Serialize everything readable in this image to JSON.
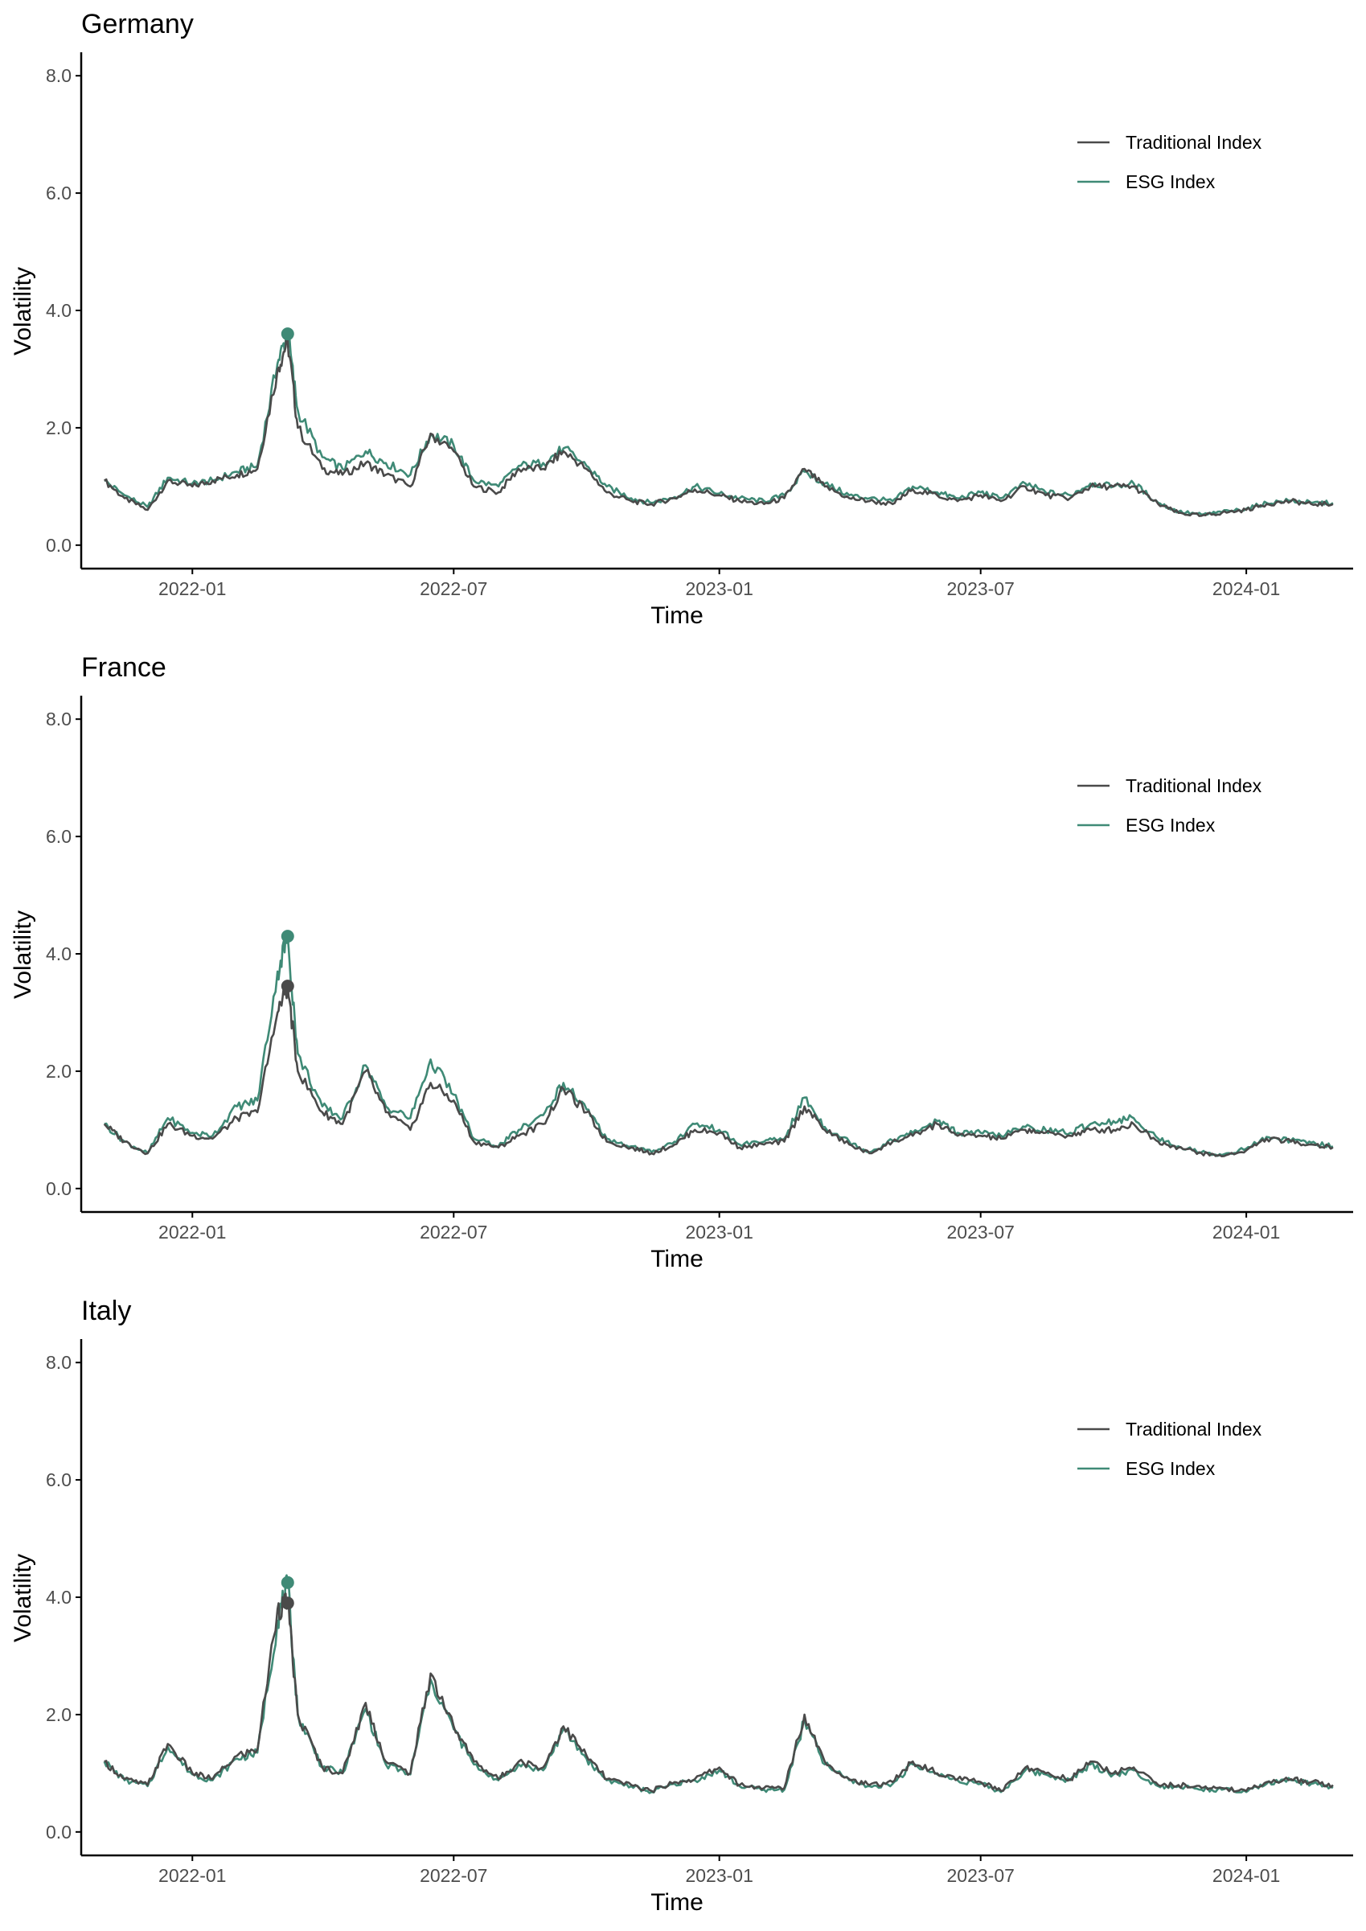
{
  "figure": {
    "x_label": "Time",
    "y_label": "Volatility",
    "legend": [
      {
        "name": "Traditional Index",
        "color": "#4a4a4a"
      },
      {
        "name": "ESG Index",
        "color": "#3f8a76"
      }
    ],
    "x_ticks": [
      "2022-01",
      "2022-07",
      "2023-01",
      "2023-07",
      "2024-01"
    ],
    "y_ticks": [
      "0.0",
      "2.0",
      "4.0",
      "6.0",
      "8.0"
    ]
  },
  "chart_data": [
    {
      "type": "line",
      "title": "Germany",
      "xlabel": "Time",
      "ylabel": "Volatility",
      "ylim": [
        -0.4,
        8.4
      ],
      "xlim": [
        "2021-10-16",
        "2024-03-15"
      ],
      "x_ticks": [
        "2022-01",
        "2022-07",
        "2023-01",
        "2023-07",
        "2024-01"
      ],
      "x": [
        "2021-11-01",
        "2021-11-15",
        "2021-12-01",
        "2021-12-15",
        "2022-01-01",
        "2022-01-15",
        "2022-02-01",
        "2022-02-15",
        "2022-03-01",
        "2022-03-08",
        "2022-03-15",
        "2022-04-01",
        "2022-04-15",
        "2022-05-01",
        "2022-05-15",
        "2022-06-01",
        "2022-06-15",
        "2022-07-01",
        "2022-07-15",
        "2022-08-01",
        "2022-08-15",
        "2022-09-01",
        "2022-09-15",
        "2022-10-01",
        "2022-10-15",
        "2022-11-01",
        "2022-11-15",
        "2022-12-01",
        "2022-12-15",
        "2023-01-01",
        "2023-01-15",
        "2023-02-01",
        "2023-02-15",
        "2023-03-01",
        "2023-03-15",
        "2023-04-01",
        "2023-04-15",
        "2023-05-01",
        "2023-05-15",
        "2023-06-01",
        "2023-06-15",
        "2023-07-01",
        "2023-07-15",
        "2023-08-01",
        "2023-08-15",
        "2023-09-01",
        "2023-09-15",
        "2023-10-01",
        "2023-10-15",
        "2023-11-01",
        "2023-11-15",
        "2023-12-01",
        "2023-12-15",
        "2024-01-01",
        "2024-01-15",
        "2024-02-01",
        "2024-02-15",
        "2024-03-01"
      ],
      "series": [
        {
          "name": "Traditional Index",
          "color": "#4a4a4a",
          "values": [
            1.1,
            0.8,
            0.6,
            1.1,
            1.0,
            1.1,
            1.2,
            1.3,
            3.0,
            3.5,
            2.0,
            1.3,
            1.2,
            1.4,
            1.2,
            1.0,
            1.9,
            1.6,
            1.0,
            0.9,
            1.3,
            1.3,
            1.6,
            1.3,
            0.9,
            0.75,
            0.7,
            0.8,
            0.95,
            0.85,
            0.75,
            0.7,
            0.8,
            1.3,
            1.0,
            0.8,
            0.75,
            0.7,
            0.95,
            0.85,
            0.75,
            0.85,
            0.75,
            1.0,
            0.85,
            0.8,
            1.0,
            1.0,
            1.0,
            0.7,
            0.55,
            0.5,
            0.55,
            0.6,
            0.7,
            0.75,
            0.7,
            0.7
          ]
        },
        {
          "name": "ESG Index",
          "color": "#3f8a76",
          "values": [
            1.1,
            0.85,
            0.65,
            1.15,
            1.05,
            1.1,
            1.25,
            1.35,
            3.1,
            3.6,
            2.3,
            1.5,
            1.3,
            1.6,
            1.4,
            1.2,
            1.9,
            1.7,
            1.1,
            1.0,
            1.35,
            1.4,
            1.65,
            1.35,
            1.0,
            0.8,
            0.72,
            0.82,
            1.0,
            0.88,
            0.8,
            0.75,
            0.85,
            1.25,
            1.05,
            0.85,
            0.8,
            0.75,
            1.0,
            0.9,
            0.8,
            0.9,
            0.8,
            1.05,
            0.9,
            0.85,
            1.05,
            1.0,
            1.05,
            0.72,
            0.57,
            0.52,
            0.56,
            0.62,
            0.72,
            0.76,
            0.72,
            0.72
          ]
        }
      ],
      "peaks": [
        {
          "series": "ESG Index",
          "x": "2022-03-08",
          "value": 3.6
        }
      ]
    },
    {
      "type": "line",
      "title": "France",
      "xlabel": "Time",
      "ylabel": "Volatility",
      "ylim": [
        -0.4,
        8.4
      ],
      "xlim": [
        "2021-10-16",
        "2024-03-15"
      ],
      "x_ticks": [
        "2022-01",
        "2022-07",
        "2023-01",
        "2023-07",
        "2024-01"
      ],
      "x": [
        "2021-11-01",
        "2021-11-15",
        "2021-12-01",
        "2021-12-15",
        "2022-01-01",
        "2022-01-15",
        "2022-02-01",
        "2022-02-15",
        "2022-03-01",
        "2022-03-08",
        "2022-03-15",
        "2022-04-01",
        "2022-04-15",
        "2022-05-01",
        "2022-05-15",
        "2022-06-01",
        "2022-06-15",
        "2022-07-01",
        "2022-07-15",
        "2022-08-01",
        "2022-08-15",
        "2022-09-01",
        "2022-09-15",
        "2022-10-01",
        "2022-10-15",
        "2022-11-01",
        "2022-11-15",
        "2022-12-01",
        "2022-12-15",
        "2023-01-01",
        "2023-01-15",
        "2023-02-01",
        "2023-02-15",
        "2023-03-01",
        "2023-03-15",
        "2023-04-01",
        "2023-04-15",
        "2023-05-01",
        "2023-05-15",
        "2023-06-01",
        "2023-06-15",
        "2023-07-01",
        "2023-07-15",
        "2023-08-01",
        "2023-08-15",
        "2023-09-01",
        "2023-09-15",
        "2023-10-01",
        "2023-10-15",
        "2023-11-01",
        "2023-11-15",
        "2023-12-01",
        "2023-12-15",
        "2024-01-01",
        "2024-01-15",
        "2024-02-01",
        "2024-02-15",
        "2024-03-01"
      ],
      "series": [
        {
          "name": "Traditional Index",
          "color": "#4a4a4a",
          "values": [
            1.1,
            0.8,
            0.6,
            1.1,
            0.9,
            0.85,
            1.2,
            1.3,
            3.0,
            3.45,
            2.0,
            1.3,
            1.1,
            2.0,
            1.3,
            1.0,
            1.8,
            1.5,
            0.8,
            0.7,
            0.9,
            1.1,
            1.7,
            1.3,
            0.8,
            0.7,
            0.6,
            0.75,
            1.0,
            0.95,
            0.7,
            0.75,
            0.8,
            1.4,
            1.0,
            0.75,
            0.6,
            0.8,
            0.9,
            1.1,
            0.9,
            0.9,
            0.85,
            1.0,
            0.95,
            0.9,
            1.0,
            1.0,
            1.1,
            0.8,
            0.7,
            0.6,
            0.55,
            0.65,
            0.85,
            0.8,
            0.75,
            0.7
          ]
        },
        {
          "name": "ESG Index",
          "color": "#3f8a76",
          "values": [
            1.1,
            0.8,
            0.6,
            1.2,
            0.95,
            0.9,
            1.4,
            1.5,
            3.7,
            4.3,
            2.3,
            1.4,
            1.2,
            2.1,
            1.4,
            1.2,
            2.2,
            1.6,
            0.85,
            0.72,
            1.0,
            1.25,
            1.8,
            1.35,
            0.85,
            0.72,
            0.62,
            0.8,
            1.1,
            1.0,
            0.75,
            0.8,
            0.85,
            1.55,
            1.05,
            0.8,
            0.62,
            0.82,
            0.95,
            1.15,
            0.95,
            0.95,
            0.9,
            1.05,
            1.0,
            0.95,
            1.1,
            1.15,
            1.2,
            0.85,
            0.72,
            0.62,
            0.57,
            0.68,
            0.88,
            0.82,
            0.78,
            0.72
          ]
        }
      ],
      "peaks": [
        {
          "series": "ESG Index",
          "x": "2022-03-08",
          "value": 4.3
        },
        {
          "series": "Traditional Index",
          "x": "2022-03-08",
          "value": 3.45
        }
      ]
    },
    {
      "type": "line",
      "title": "Italy",
      "xlabel": "Time",
      "ylabel": "Volatility",
      "ylim": [
        -0.4,
        8.4
      ],
      "xlim": [
        "2021-10-16",
        "2024-03-15"
      ],
      "x_ticks": [
        "2022-01",
        "2022-07",
        "2023-01",
        "2023-07",
        "2024-01"
      ],
      "x": [
        "2021-11-01",
        "2021-11-15",
        "2021-12-01",
        "2021-12-15",
        "2022-01-01",
        "2022-01-15",
        "2022-02-01",
        "2022-02-15",
        "2022-03-01",
        "2022-03-08",
        "2022-03-15",
        "2022-04-01",
        "2022-04-15",
        "2022-05-01",
        "2022-05-15",
        "2022-06-01",
        "2022-06-15",
        "2022-07-01",
        "2022-07-15",
        "2022-08-01",
        "2022-08-15",
        "2022-09-01",
        "2022-09-15",
        "2022-10-01",
        "2022-10-15",
        "2022-11-01",
        "2022-11-15",
        "2022-12-01",
        "2022-12-15",
        "2023-01-01",
        "2023-01-15",
        "2023-02-01",
        "2023-02-15",
        "2023-03-01",
        "2023-03-15",
        "2023-04-01",
        "2023-04-15",
        "2023-05-01",
        "2023-05-15",
        "2023-06-01",
        "2023-06-15",
        "2023-07-01",
        "2023-07-15",
        "2023-08-01",
        "2023-08-15",
        "2023-09-01",
        "2023-09-15",
        "2023-10-01",
        "2023-10-15",
        "2023-11-01",
        "2023-11-15",
        "2023-12-01",
        "2023-12-15",
        "2024-01-01",
        "2024-01-15",
        "2024-02-01",
        "2024-02-15",
        "2024-03-01"
      ],
      "series": [
        {
          "name": "Traditional Index",
          "color": "#4a4a4a",
          "values": [
            1.2,
            0.9,
            0.8,
            1.5,
            1.0,
            0.9,
            1.3,
            1.4,
            3.8,
            3.9,
            2.0,
            1.1,
            1.0,
            2.2,
            1.2,
            1.0,
            2.7,
            1.8,
            1.2,
            0.9,
            1.2,
            1.1,
            1.8,
            1.3,
            0.9,
            0.8,
            0.7,
            0.85,
            0.9,
            1.1,
            0.8,
            0.75,
            0.75,
            2.0,
            1.2,
            0.9,
            0.8,
            0.85,
            1.2,
            1.0,
            0.9,
            0.85,
            0.7,
            1.1,
            1.0,
            0.9,
            1.2,
            1.0,
            1.1,
            0.8,
            0.8,
            0.75,
            0.75,
            0.7,
            0.85,
            0.9,
            0.85,
            0.8
          ]
        },
        {
          "name": "ESG Index",
          "color": "#3f8a76",
          "values": [
            1.2,
            0.88,
            0.78,
            1.45,
            0.98,
            0.88,
            1.25,
            1.35,
            3.6,
            4.25,
            2.0,
            1.1,
            1.0,
            2.1,
            1.15,
            0.98,
            2.6,
            1.75,
            1.15,
            0.88,
            1.15,
            1.05,
            1.75,
            1.25,
            0.88,
            0.78,
            0.68,
            0.82,
            0.88,
            1.05,
            0.78,
            0.72,
            0.72,
            1.9,
            1.15,
            0.88,
            0.78,
            0.82,
            1.15,
            0.98,
            0.88,
            0.82,
            0.68,
            1.05,
            0.98,
            0.88,
            1.15,
            0.98,
            1.05,
            0.78,
            0.78,
            0.72,
            0.72,
            0.68,
            0.82,
            0.88,
            0.82,
            0.75
          ]
        }
      ],
      "peaks": [
        {
          "series": "ESG Index",
          "x": "2022-03-08",
          "value": 4.25
        },
        {
          "series": "Traditional Index",
          "x": "2022-03-08",
          "value": 3.9
        }
      ]
    }
  ]
}
